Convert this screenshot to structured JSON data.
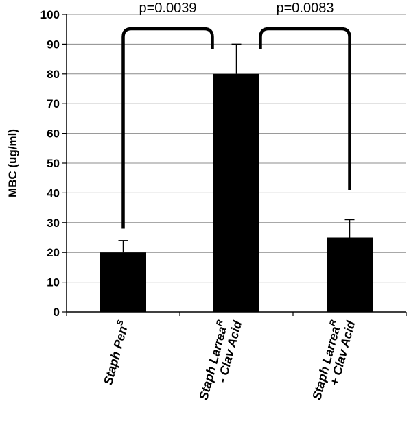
{
  "chart_data": {
    "type": "bar",
    "ylabel": "MBC (ug/ml)",
    "xlabel": "",
    "ylim": [
      0,
      100
    ],
    "yticks": [
      0,
      10,
      20,
      30,
      40,
      50,
      60,
      70,
      80,
      90,
      100
    ],
    "grid": true,
    "categories": [
      {
        "line1": "Staph Pen",
        "line1_sup": "S",
        "line2": ""
      },
      {
        "line1": "Staph Larrea",
        "line1_sup": "R",
        "line2": "- Clav Acid"
      },
      {
        "line1": "Staph Larrea",
        "line1_sup": "R",
        "line2": "+ Clav Acid"
      }
    ],
    "values": [
      20,
      80,
      25
    ],
    "errors": [
      4,
      10,
      6
    ],
    "bar_color": "#000000",
    "comparisons": [
      {
        "from": 0,
        "to": 1,
        "label": "p=0.0039"
      },
      {
        "from": 1,
        "to": 2,
        "label": "p=0.0083"
      }
    ]
  }
}
